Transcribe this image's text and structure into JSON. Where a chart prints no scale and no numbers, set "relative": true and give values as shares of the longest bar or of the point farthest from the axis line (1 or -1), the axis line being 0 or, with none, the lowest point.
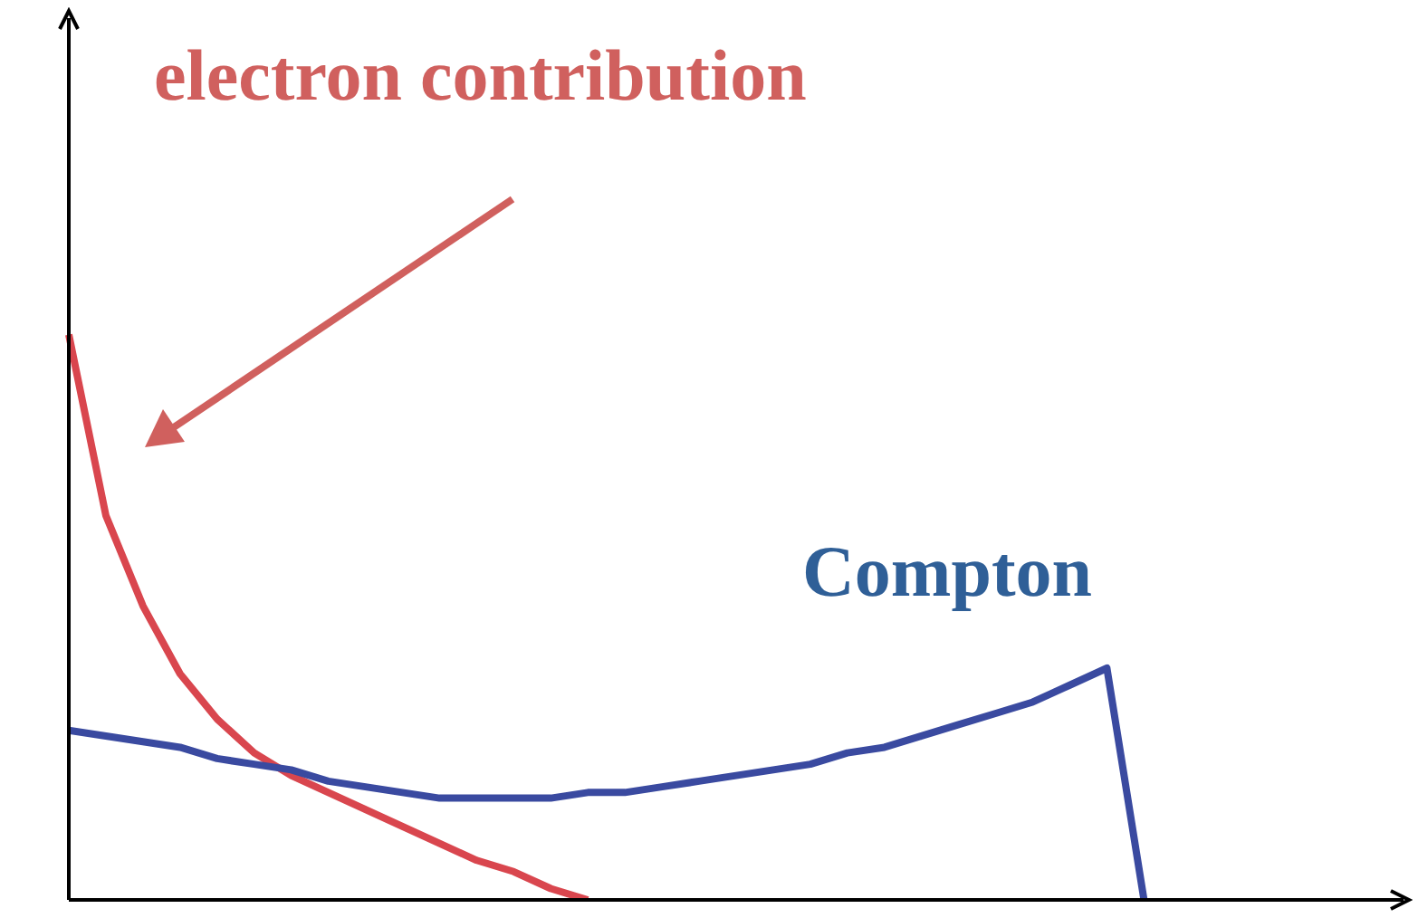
{
  "chart_data": {
    "type": "line",
    "relative": true,
    "categories": [
      null,
      null,
      null,
      null,
      null,
      null,
      null,
      null,
      null,
      null,
      null,
      null,
      null,
      null,
      null,
      null,
      null,
      null,
      null,
      null,
      null,
      null,
      null,
      null,
      null,
      null,
      null,
      null,
      null,
      null,
      null,
      null,
      null,
      null,
      null,
      null,
      null
    ],
    "series": [
      {
        "name": "electron contribution",
        "color": "#d9464e",
        "values": [
          1.0,
          0.68,
          0.52,
          0.4,
          0.32,
          0.26,
          0.22,
          0.19,
          0.16,
          0.13,
          0.1,
          0.07,
          0.05,
          0.02,
          0,
          null,
          null,
          null,
          null,
          null,
          null,
          null,
          null,
          null,
          null,
          null,
          null,
          null,
          null,
          null,
          null,
          null,
          null,
          null,
          null,
          null,
          null
        ]
      },
      {
        "name": "Compton",
        "color": "#3a4aa0",
        "values": [
          0.3,
          0.29,
          0.28,
          0.27,
          0.25,
          0.24,
          0.23,
          0.21,
          0.2,
          0.19,
          0.18,
          0.18,
          0.18,
          0.18,
          0.19,
          0.19,
          0.2,
          0.21,
          0.22,
          0.23,
          0.24,
          0.26,
          0.27,
          0.29,
          0.31,
          0.33,
          0.35,
          0.38,
          0.41,
          0,
          null,
          null,
          null,
          null,
          null,
          null,
          null
        ]
      }
    ]
  }
}
